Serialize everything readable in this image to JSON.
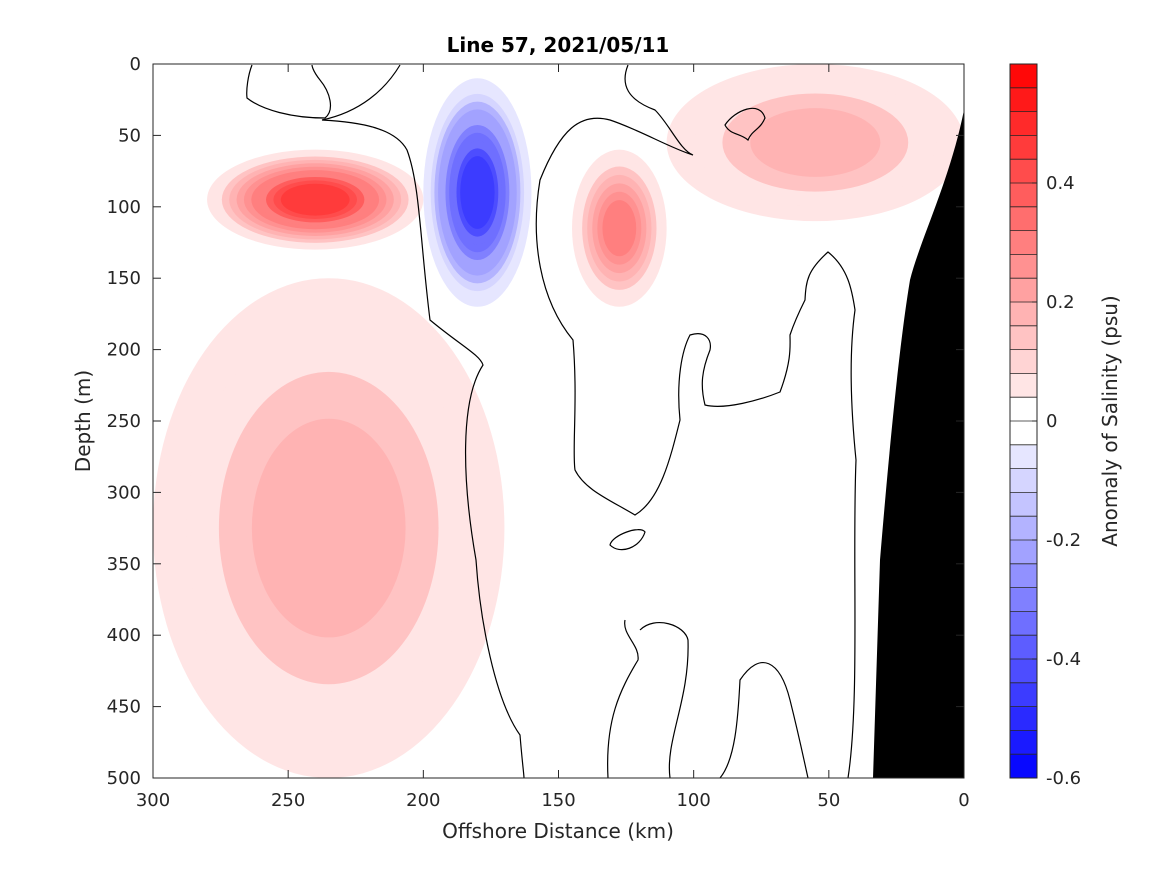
{
  "chart_data": {
    "type": "heatmap",
    "title": "Line 57, 2021/05/11",
    "xlabel": "Offshore Distance (km)",
    "ylabel": "Depth (m)",
    "xlim": [
      300,
      0
    ],
    "ylim": [
      0,
      500
    ],
    "x_reversed": true,
    "y_reversed": true,
    "xticks": [
      300,
      250,
      200,
      150,
      100,
      50,
      0
    ],
    "yticks": [
      0,
      50,
      100,
      150,
      200,
      250,
      300,
      350,
      400,
      450,
      500
    ],
    "colorbar": {
      "label": "Anomaly of Salinity (psu)",
      "range": [
        -0.6,
        0.6
      ],
      "step": 0.04,
      "ticks": [
        -0.6,
        -0.4,
        -0.2,
        0,
        0.2,
        0.4
      ],
      "tick_labels": [
        "-0.6",
        "-0.4",
        "-0.2",
        "0",
        "0.2",
        "0.4"
      ],
      "negative_color": "#0000ff",
      "zero_color": "#ffffff",
      "positive_color": "#ff0000"
    },
    "features": [
      {
        "name": "positive anomaly core",
        "x": [
          280,
          200
        ],
        "depth": [
          60,
          130
        ],
        "value": 0.45
      },
      {
        "name": "negative anomaly core",
        "x": [
          200,
          160
        ],
        "depth": [
          10,
          170
        ],
        "value": -0.45
      },
      {
        "name": "positive anomaly",
        "x": [
          145,
          110
        ],
        "depth": [
          60,
          170
        ],
        "value": 0.28
      },
      {
        "name": "positive anomaly",
        "x": [
          300,
          170
        ],
        "depth": [
          150,
          500
        ],
        "value": 0.15
      },
      {
        "name": "positive anomaly",
        "x": [
          110,
          0
        ],
        "depth": [
          0,
          110
        ],
        "value": 0.15
      }
    ],
    "bathymetry_color": "#000000",
    "grid": false
  }
}
